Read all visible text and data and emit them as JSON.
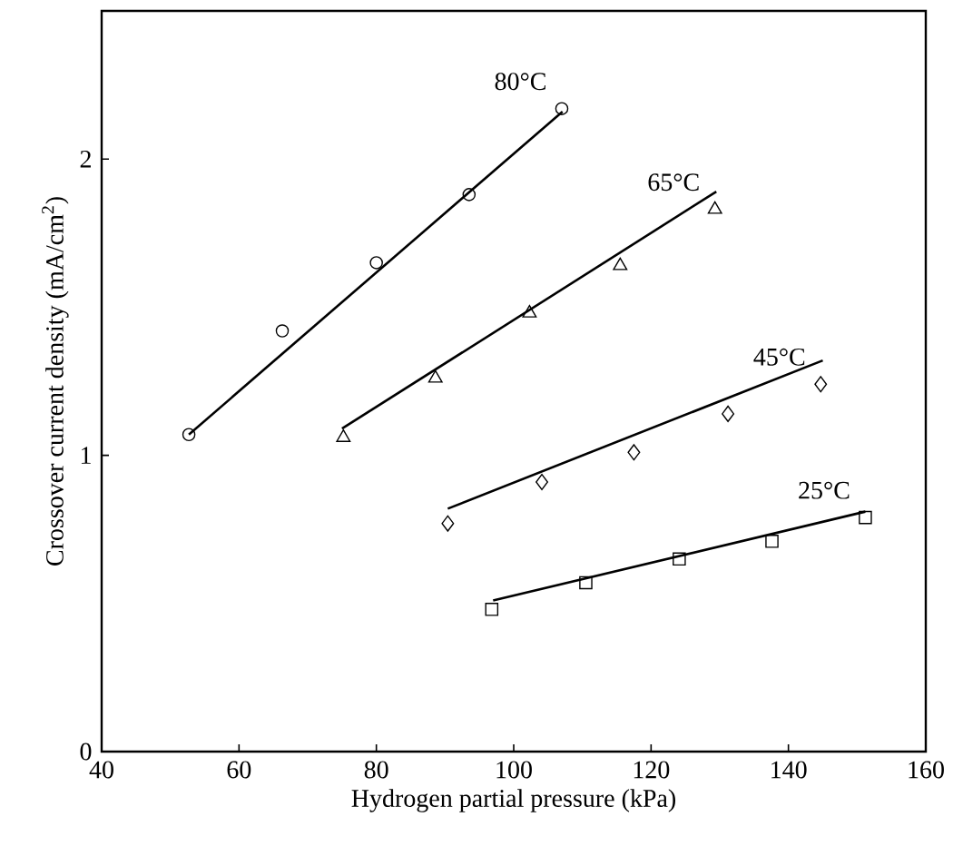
{
  "chart_data": {
    "type": "scatter",
    "xlabel": "Hydrogen partial pressure (kPa)",
    "ylabel": "Crossover current density (mA/cm$^{2}$)",
    "xlim": [
      40,
      160
    ],
    "ylim": [
      0,
      2.5
    ],
    "xticks": [
      40,
      60,
      80,
      100,
      120,
      140,
      160
    ],
    "yticks": [
      0,
      1,
      2
    ],
    "grid": false,
    "legend": false,
    "series": [
      {
        "name": "80°C",
        "marker": "circle",
        "color": "#000000",
        "x": [
          52.7,
          66.3,
          80.0,
          93.5,
          107.0
        ],
        "values": [
          1.07,
          1.42,
          1.65,
          1.88,
          2.17
        ]
      },
      {
        "type": "line",
        "marker": "none",
        "color": "#000000",
        "x": [
          52.7,
          107.1
        ],
        "values": [
          1.07,
          2.16
        ]
      },
      {
        "name": "65°C",
        "marker": "triangle",
        "color": "#000000",
        "x": [
          75.2,
          88.6,
          102.3,
          115.5,
          129.3
        ],
        "values": [
          1.06,
          1.26,
          1.48,
          1.64,
          1.83
        ]
      },
      {
        "type": "line",
        "marker": "none",
        "color": "#000000",
        "x": [
          75.0,
          129.5
        ],
        "values": [
          1.09,
          1.89
        ]
      },
      {
        "name": "45°C",
        "marker": "diamond",
        "color": "#000000",
        "x": [
          90.4,
          104.1,
          117.5,
          131.2,
          144.7
        ],
        "values": [
          0.77,
          0.91,
          1.01,
          1.14,
          1.24
        ]
      },
      {
        "type": "line",
        "marker": "none",
        "color": "#000000",
        "x": [
          90.4,
          145.0
        ],
        "values": [
          0.82,
          1.32
        ]
      },
      {
        "name": "25°C",
        "marker": "square",
        "color": "#000000",
        "x": [
          96.8,
          110.5,
          124.1,
          137.6,
          151.2
        ],
        "values": [
          0.48,
          0.57,
          0.65,
          0.71,
          0.79
        ]
      },
      {
        "type": "line",
        "marker": "none",
        "color": "#000000",
        "x": [
          97.0,
          151.2
        ],
        "values": [
          0.51,
          0.81
        ]
      }
    ]
  }
}
